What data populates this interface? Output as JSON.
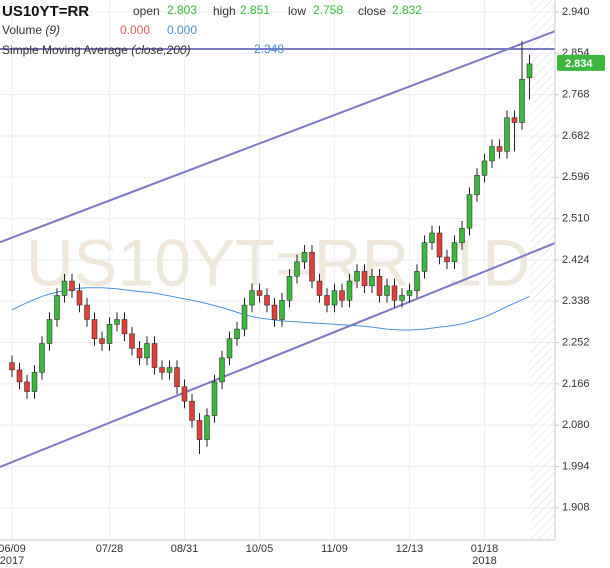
{
  "header": {
    "symbol": "US10YT=RR",
    "open_label": "open",
    "open": "2.803",
    "high_label": "high",
    "high": "2.851",
    "low_label": "low",
    "low": "2.758",
    "close_label": "close",
    "close": "2.832",
    "volume_label": "Volume",
    "volume_params": "(9)",
    "volume_a": "0.000",
    "volume_b": "0.000",
    "sma_label": "Simple Moving Average",
    "sma_params": "(close,200)",
    "sma": "2.348"
  },
  "chart_data": {
    "type": "candlestick",
    "watermark": "US10YT=RR, 1D",
    "categories": [
      "06/09",
      null,
      null,
      null,
      null,
      null,
      null,
      null,
      null,
      null,
      null,
      null,
      null,
      "07/28",
      null,
      null,
      null,
      null,
      null,
      null,
      null,
      null,
      null,
      "08/31",
      null,
      null,
      null,
      null,
      null,
      null,
      null,
      null,
      null,
      "10/05",
      null,
      null,
      null,
      null,
      null,
      null,
      null,
      null,
      null,
      "11/09",
      null,
      null,
      null,
      null,
      null,
      null,
      null,
      null,
      null,
      "12/13",
      null,
      null,
      null,
      null,
      null,
      null,
      null,
      null,
      null,
      "01/18",
      null,
      null,
      null,
      null,
      null,
      null
    ],
    "years": [
      "2017",
      null,
      null,
      null,
      null,
      null,
      null,
      null,
      null,
      null,
      null,
      null,
      null,
      null,
      null,
      null,
      null,
      null,
      null,
      null,
      null,
      null,
      null,
      null,
      null,
      null,
      null,
      null,
      null,
      null,
      null,
      null,
      null,
      null,
      null,
      null,
      null,
      null,
      null,
      null,
      null,
      null,
      null,
      null,
      null,
      null,
      null,
      null,
      null,
      null,
      null,
      null,
      null,
      null,
      null,
      null,
      null,
      null,
      null,
      null,
      null,
      null,
      null,
      "2018",
      null,
      null,
      null,
      null,
      null,
      null
    ],
    "open": [
      2.21,
      2.195,
      2.17,
      2.15,
      2.19,
      2.25,
      2.3,
      2.35,
      2.38,
      2.36,
      2.33,
      2.3,
      2.26,
      2.25,
      2.29,
      2.3,
      2.27,
      2.24,
      2.22,
      2.25,
      2.2,
      2.19,
      2.2,
      2.16,
      2.13,
      2.09,
      2.05,
      2.1,
      2.17,
      2.22,
      2.26,
      2.28,
      2.33,
      2.36,
      2.35,
      2.33,
      2.3,
      2.34,
      2.39,
      2.42,
      2.44,
      2.38,
      2.35,
      2.33,
      2.36,
      2.34,
      2.38,
      2.4,
      2.37,
      2.39,
      2.35,
      2.37,
      2.34,
      2.35,
      2.36,
      2.4,
      2.46,
      2.48,
      2.43,
      2.42,
      2.46,
      2.49,
      2.56,
      2.6,
      2.63,
      2.66,
      2.65,
      2.72,
      2.71,
      2.803
    ],
    "high": [
      2.225,
      2.21,
      2.185,
      2.205,
      2.265,
      2.315,
      2.365,
      2.395,
      2.395,
      2.375,
      2.345,
      2.315,
      2.275,
      2.305,
      2.315,
      2.315,
      2.285,
      2.255,
      2.265,
      2.265,
      2.215,
      2.215,
      2.215,
      2.175,
      2.145,
      2.105,
      2.115,
      2.185,
      2.235,
      2.275,
      2.295,
      2.345,
      2.375,
      2.375,
      2.365,
      2.345,
      2.355,
      2.405,
      2.435,
      2.455,
      2.455,
      2.395,
      2.365,
      2.375,
      2.375,
      2.395,
      2.415,
      2.415,
      2.405,
      2.405,
      2.385,
      2.385,
      2.365,
      2.375,
      2.415,
      2.475,
      2.495,
      2.495,
      2.445,
      2.475,
      2.505,
      2.575,
      2.615,
      2.645,
      2.675,
      2.675,
      2.735,
      2.735,
      2.88,
      2.851
    ],
    "low": [
      2.18,
      2.155,
      2.135,
      2.135,
      2.175,
      2.235,
      2.285,
      2.335,
      2.345,
      2.315,
      2.285,
      2.245,
      2.235,
      2.235,
      2.275,
      2.255,
      2.225,
      2.205,
      2.205,
      2.185,
      2.175,
      2.175,
      2.145,
      2.115,
      2.075,
      2.02,
      2.035,
      2.085,
      2.155,
      2.205,
      2.245,
      2.265,
      2.315,
      2.335,
      2.315,
      2.285,
      2.285,
      2.325,
      2.375,
      2.405,
      2.365,
      2.335,
      2.315,
      2.315,
      2.325,
      2.325,
      2.365,
      2.355,
      2.355,
      2.335,
      2.335,
      2.325,
      2.325,
      2.335,
      2.345,
      2.385,
      2.445,
      2.415,
      2.405,
      2.405,
      2.445,
      2.475,
      2.545,
      2.585,
      2.615,
      2.635,
      2.635,
      2.65,
      2.695,
      2.758
    ],
    "close": [
      2.195,
      2.17,
      2.15,
      2.19,
      2.25,
      2.3,
      2.35,
      2.38,
      2.36,
      2.33,
      2.3,
      2.26,
      2.25,
      2.29,
      2.3,
      2.27,
      2.24,
      2.22,
      2.25,
      2.2,
      2.19,
      2.2,
      2.16,
      2.13,
      2.09,
      2.05,
      2.1,
      2.17,
      2.22,
      2.26,
      2.28,
      2.33,
      2.36,
      2.35,
      2.33,
      2.3,
      2.34,
      2.39,
      2.42,
      2.44,
      2.38,
      2.35,
      2.33,
      2.36,
      2.34,
      2.38,
      2.4,
      2.37,
      2.39,
      2.35,
      2.37,
      2.34,
      2.35,
      2.36,
      2.4,
      2.46,
      2.48,
      2.43,
      2.42,
      2.46,
      2.49,
      2.56,
      2.6,
      2.63,
      2.66,
      2.65,
      2.72,
      2.71,
      2.8,
      2.832
    ],
    "sma": [
      2.32,
      2.328,
      2.335,
      2.342,
      2.348,
      2.353,
      2.357,
      2.36,
      2.363,
      2.365,
      2.366,
      2.366,
      2.366,
      2.365,
      2.364,
      2.362,
      2.36,
      2.358,
      2.357,
      2.355,
      2.352,
      2.349,
      2.346,
      2.343,
      2.34,
      2.337,
      2.333,
      2.329,
      2.325,
      2.32,
      2.315,
      2.31,
      2.306,
      2.303,
      2.301,
      2.299,
      2.297,
      2.296,
      2.295,
      2.294,
      2.293,
      2.292,
      2.291,
      2.29,
      2.289,
      2.288,
      2.287,
      2.286,
      2.284,
      2.282,
      2.28,
      2.279,
      2.278,
      2.278,
      2.279,
      2.28,
      2.282,
      2.284,
      2.286,
      2.288,
      2.291,
      2.295,
      2.3,
      2.305,
      2.312,
      2.319,
      2.327,
      2.334,
      2.341,
      2.348
    ],
    "up_color": "#3cb83c",
    "down_color": "#e0403a",
    "sma_color": "#4a90d9",
    "line_color": "#7b79c4",
    "trend_lines": [
      [
        2.461,
        2.9
      ],
      [
        1.993,
        2.459
      ]
    ],
    "hline": 2.863,
    "last_price": 2.834,
    "ylim": [
      1.841,
      2.965
    ],
    "yticks": [
      {
        "value": 2.94,
        "label": "2.940"
      },
      2.854,
      2.768,
      2.682,
      2.596,
      {
        "value": 2.51,
        "label": "2.510"
      },
      2.424,
      2.338,
      2.252,
      2.166,
      {
        "value": 2.08,
        "label": "2.080"
      },
      1.994,
      1.908
    ],
    "grid": true
  }
}
